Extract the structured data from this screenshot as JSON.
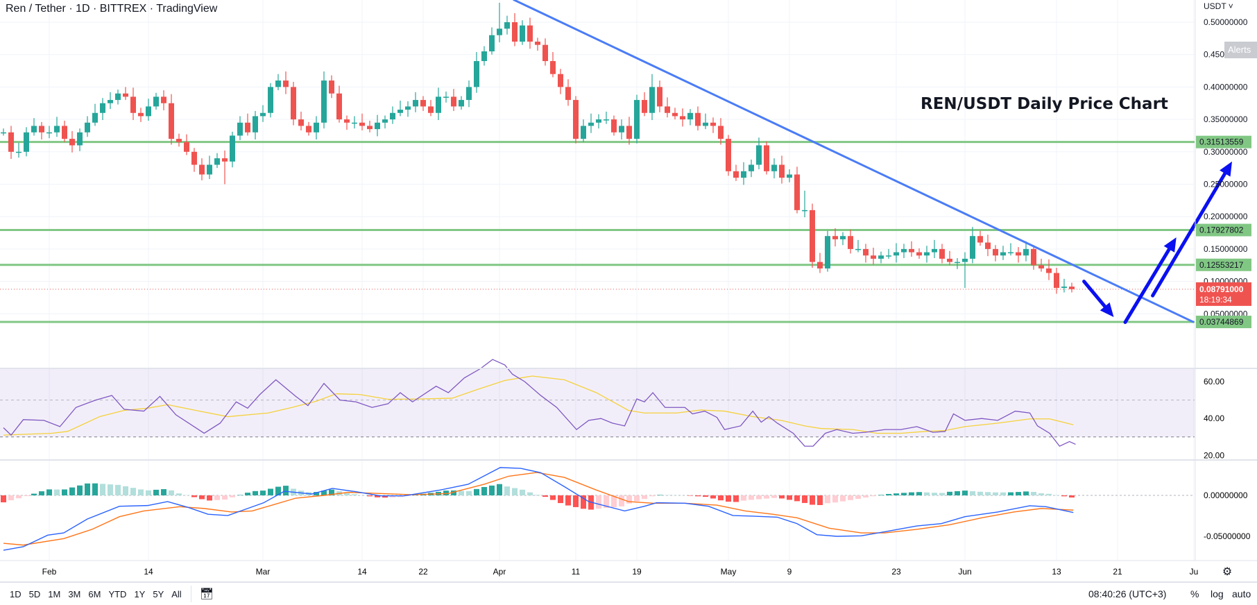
{
  "header": {
    "title": "Ren / Tether · 1D · BITTREX · TradingView"
  },
  "price_axis": {
    "currency": "USDT ˅",
    "alerts_label": "Alerts",
    "labels": [
      "0.50000000",
      "0.45000000",
      "0.40000000",
      "0.35000000",
      "0.30000000",
      "0.25000000",
      "0.20000000",
      "0.15000000",
      "0.10000000",
      "0.05000000"
    ],
    "current_price": "0.08791000",
    "countdown": "18:19:34"
  },
  "rsi_axis": {
    "labels": [
      "60.00",
      "40.00",
      "20.00"
    ]
  },
  "macd_axis": {
    "labels": [
      "0.00000000",
      "-0.05000000"
    ]
  },
  "time_axis": {
    "labels": [
      {
        "day": 6,
        "text": "Feb"
      },
      {
        "day": 19,
        "text": "14"
      },
      {
        "day": 34,
        "text": "Mar"
      },
      {
        "day": 47,
        "text": "14"
      },
      {
        "day": 55,
        "text": "22"
      },
      {
        "day": 65,
        "text": "Apr"
      },
      {
        "day": 75,
        "text": "11"
      },
      {
        "day": 83,
        "text": "19"
      },
      {
        "day": 95,
        "text": "May"
      },
      {
        "day": 103,
        "text": "9"
      },
      {
        "day": 117,
        "text": "23"
      },
      {
        "day": 126,
        "text": "Jun"
      },
      {
        "day": 138,
        "text": "13"
      },
      {
        "day": 146,
        "text": "21"
      },
      {
        "day": 156,
        "text": "Ju"
      }
    ]
  },
  "bottom_toolbar": {
    "ranges": [
      "1D",
      "5D",
      "1M",
      "3M",
      "6M",
      "YTD",
      "1Y",
      "5Y",
      "All"
    ],
    "clock": "08:40:26 (UTC+3)",
    "percent": "%",
    "log": "log",
    "auto": "auto"
  },
  "colors": {
    "up": "#26a69a",
    "down": "#ef5350",
    "level": "#81c784",
    "trend": "#4a7cf7",
    "arrow": "#0a10f0",
    "rsi": "#7e57c2",
    "rsi_ma": "#f5d13a",
    "macd": "#2962ff",
    "signal": "#ff7417"
  },
  "chart_data": {
    "type": "candlestick",
    "title": "REN/USDT Daily Price Chart",
    "symbol": "Ren / Tether",
    "start_date": "Jan 26",
    "closes": [
      0.33,
      0.3,
      0.3,
      0.33,
      0.34,
      0.33,
      0.33,
      0.34,
      0.32,
      0.31,
      0.33,
      0.345,
      0.36,
      0.375,
      0.38,
      0.39,
      0.385,
      0.36,
      0.355,
      0.37,
      0.385,
      0.375,
      0.32,
      0.315,
      0.3,
      0.28,
      0.265,
      0.28,
      0.29,
      0.285,
      0.325,
      0.345,
      0.33,
      0.355,
      0.36,
      0.4,
      0.41,
      0.4,
      0.35,
      0.34,
      0.33,
      0.345,
      0.41,
      0.39,
      0.35,
      0.345,
      0.345,
      0.34,
      0.335,
      0.345,
      0.35,
      0.36,
      0.365,
      0.37,
      0.38,
      0.37,
      0.36,
      0.385,
      0.385,
      0.37,
      0.38,
      0.4,
      0.44,
      0.455,
      0.48,
      0.49,
      0.5,
      0.47,
      0.495,
      0.47,
      0.465,
      0.44,
      0.42,
      0.4,
      0.38,
      0.32,
      0.34,
      0.345,
      0.35,
      0.35,
      0.33,
      0.34,
      0.32,
      0.38,
      0.36,
      0.4,
      0.37,
      0.36,
      0.355,
      0.35,
      0.36,
      0.34,
      0.345,
      0.34,
      0.32,
      0.27,
      0.26,
      0.27,
      0.28,
      0.31,
      0.27,
      0.28,
      0.26,
      0.265,
      0.21,
      0.21,
      0.13,
      0.12,
      0.17,
      0.165,
      0.17,
      0.15,
      0.15,
      0.14,
      0.135,
      0.14,
      0.14,
      0.145,
      0.15,
      0.145,
      0.14,
      0.145,
      0.15,
      0.135,
      0.13,
      0.13,
      0.135,
      0.17,
      0.16,
      0.15,
      0.14,
      0.145,
      0.145,
      0.14,
      0.15,
      0.125,
      0.12,
      0.113,
      0.09,
      0.092,
      0.088
    ],
    "long_wicks": [
      {
        "day": 29,
        "low": 0.25
      },
      {
        "day": 65,
        "high": 0.53
      },
      {
        "day": 85,
        "high": 0.42
      },
      {
        "day": 126,
        "low": 0.09
      },
      {
        "day": 105,
        "high": 0.24
      }
    ],
    "levels": [
      {
        "value": 0.31513559,
        "label": "0.31513559"
      },
      {
        "value": 0.17927802,
        "label": "0.17927802"
      },
      {
        "value": 0.12553217,
        "label": "0.12553217"
      },
      {
        "value": 0.03744869,
        "label": "0.03744869"
      }
    ],
    "current_price": 0.08791,
    "trendline": {
      "from": {
        "day": 66.8,
        "price": 0.535
      },
      "to": {
        "day": 156,
        "price": 0.037
      }
    },
    "arrows": [
      {
        "from": {
          "day": 141.6,
          "price": 0.1
        },
        "to": {
          "day": 145.5,
          "price": 0.045
        }
      },
      {
        "from": {
          "day": 147,
          "price": 0.037
        },
        "to": {
          "day": 153.7,
          "price": 0.168
        }
      },
      {
        "from": {
          "day": 150.6,
          "price": 0.078
        },
        "to": {
          "day": 161,
          "price": 0.285
        }
      }
    ],
    "rsi": {
      "levels": [
        70,
        50,
        30
      ],
      "ylim": [
        18,
        72
      ],
      "points": [
        [
          0,
          35
        ],
        [
          1,
          31
        ],
        [
          2.6,
          39.4
        ],
        [
          5.3,
          39
        ],
        [
          7.4,
          35.6
        ],
        [
          9.5,
          46
        ],
        [
          12.1,
          50
        ],
        [
          14.2,
          52.5
        ],
        [
          15.8,
          45
        ],
        [
          18.4,
          44
        ],
        [
          20.5,
          52
        ],
        [
          22.6,
          42
        ],
        [
          26.3,
          32
        ],
        [
          28.4,
          37.5
        ],
        [
          30.5,
          49
        ],
        [
          32,
          45.6
        ],
        [
          33.6,
          53
        ],
        [
          35.7,
          61
        ],
        [
          38.3,
          52
        ],
        [
          39.9,
          47
        ],
        [
          42,
          59
        ],
        [
          44.1,
          50
        ],
        [
          46.2,
          49
        ],
        [
          48.3,
          46
        ],
        [
          50.4,
          48
        ],
        [
          52,
          54
        ],
        [
          53.6,
          49
        ],
        [
          56.7,
          57.5
        ],
        [
          58.3,
          54
        ],
        [
          60.4,
          62
        ],
        [
          62.5,
          67
        ],
        [
          64.1,
          72
        ],
        [
          65.7,
          69
        ],
        [
          66.7,
          64
        ],
        [
          68.3,
          60
        ],
        [
          70.4,
          52.5
        ],
        [
          72.5,
          46
        ],
        [
          75.1,
          34
        ],
        [
          76.7,
          39
        ],
        [
          78.3,
          40
        ],
        [
          79.8,
          37.5
        ],
        [
          81.4,
          36
        ],
        [
          83,
          50.6
        ],
        [
          84,
          49
        ],
        [
          85.1,
          54
        ],
        [
          86.7,
          46
        ],
        [
          89.3,
          46
        ],
        [
          90.3,
          42.5
        ],
        [
          91.9,
          44
        ],
        [
          93.5,
          40.6
        ],
        [
          94.5,
          34
        ],
        [
          96.6,
          36
        ],
        [
          98.2,
          44
        ],
        [
          99.3,
          38
        ],
        [
          100.3,
          41
        ],
        [
          101.4,
          37.5
        ],
        [
          103.5,
          32
        ],
        [
          105,
          25
        ],
        [
          106.1,
          25
        ],
        [
          107.7,
          32
        ],
        [
          109.2,
          34
        ],
        [
          111.3,
          32
        ],
        [
          112.9,
          32.5
        ],
        [
          115.5,
          34
        ],
        [
          117.6,
          34
        ],
        [
          119.7,
          35.6
        ],
        [
          121.8,
          32.5
        ],
        [
          123.4,
          33
        ],
        [
          124.5,
          42.5
        ],
        [
          126,
          39
        ],
        [
          128.2,
          40
        ],
        [
          130.3,
          39
        ],
        [
          132.6,
          44
        ],
        [
          134.5,
          43
        ],
        [
          135.5,
          36
        ],
        [
          137.1,
          32
        ],
        [
          138.4,
          25
        ],
        [
          139.7,
          27.5
        ],
        [
          140.5,
          26
        ]
      ],
      "ma": [
        [
          0,
          31
        ],
        [
          6.3,
          32
        ],
        [
          8.4,
          33
        ],
        [
          12.6,
          41
        ],
        [
          15.8,
          44.4
        ],
        [
          18.9,
          45.6
        ],
        [
          21.5,
          47.5
        ],
        [
          25.2,
          44.4
        ],
        [
          29.4,
          41
        ],
        [
          34.7,
          43
        ],
        [
          37.8,
          46
        ],
        [
          41,
          49.4
        ],
        [
          43.6,
          53.4
        ],
        [
          46.7,
          53
        ],
        [
          50.4,
          50.4
        ],
        [
          54.6,
          50.6
        ],
        [
          58.8,
          51
        ],
        [
          62,
          55.6
        ],
        [
          65.7,
          60.6
        ],
        [
          69.3,
          63
        ],
        [
          73.5,
          61
        ],
        [
          77.7,
          54
        ],
        [
          81.9,
          44.4
        ],
        [
          84,
          43
        ],
        [
          88.2,
          43
        ],
        [
          91.4,
          44.6
        ],
        [
          94.5,
          44
        ],
        [
          98.2,
          41
        ],
        [
          101.9,
          39
        ],
        [
          105,
          36
        ],
        [
          107.1,
          34.6
        ],
        [
          111.3,
          34
        ],
        [
          114.5,
          32
        ],
        [
          117.6,
          32
        ],
        [
          120.8,
          33
        ],
        [
          123.4,
          33.5
        ],
        [
          126,
          35.6
        ],
        [
          130.3,
          37.5
        ],
        [
          134.5,
          39.8
        ],
        [
          137.1,
          39.8
        ],
        [
          140.2,
          36.6
        ]
      ]
    },
    "macd": {
      "ylim": [
        -0.075,
        0.045
      ],
      "macd": [
        [
          0,
          -0.067
        ],
        [
          2.6,
          -0.0627
        ],
        [
          5.8,
          -0.0486
        ],
        [
          7.9,
          -0.0458
        ],
        [
          11,
          -0.0288
        ],
        [
          15.2,
          -0.0133
        ],
        [
          18.9,
          -0.0124
        ],
        [
          21.5,
          -0.0076
        ],
        [
          24.2,
          -0.0147
        ],
        [
          26.8,
          -0.023
        ],
        [
          29.4,
          -0.0246
        ],
        [
          32,
          -0.016
        ],
        [
          34.1,
          -0.009
        ],
        [
          36.8,
          0.005
        ],
        [
          40.4,
          0.0017
        ],
        [
          43.1,
          0.0085
        ],
        [
          46.2,
          0.0045
        ],
        [
          49.4,
          -0.0006
        ],
        [
          52.5,
          -0.0006
        ],
        [
          57.2,
          0.0065
        ],
        [
          60.9,
          0.0136
        ],
        [
          65.1,
          0.034
        ],
        [
          67.8,
          0.033
        ],
        [
          70.4,
          0.0277
        ],
        [
          73.5,
          0.0107
        ],
        [
          76.7,
          -0.0076
        ],
        [
          81.4,
          -0.019
        ],
        [
          84,
          -0.0133
        ],
        [
          85.6,
          -0.009
        ],
        [
          89.3,
          -0.0096
        ],
        [
          92.4,
          -0.0133
        ],
        [
          95.6,
          -0.0246
        ],
        [
          98.2,
          -0.0254
        ],
        [
          101.4,
          -0.0266
        ],
        [
          104,
          -0.0345
        ],
        [
          106.6,
          -0.048
        ],
        [
          109.2,
          -0.05
        ],
        [
          112.4,
          -0.0494
        ],
        [
          115.5,
          -0.0444
        ],
        [
          119.7,
          -0.0373
        ],
        [
          122.9,
          -0.0345
        ],
        [
          126,
          -0.026
        ],
        [
          130.3,
          -0.0203
        ],
        [
          134.5,
          -0.0127
        ],
        [
          136.6,
          -0.0138
        ],
        [
          140.2,
          -0.0209
        ]
      ],
      "signal": [
        [
          0,
          -0.0585
        ],
        [
          2.6,
          -0.0607
        ],
        [
          7.9,
          -0.0528
        ],
        [
          11.6,
          -0.0415
        ],
        [
          15.2,
          -0.026
        ],
        [
          18.4,
          -0.019
        ],
        [
          23.1,
          -0.0138
        ],
        [
          26.3,
          -0.016
        ],
        [
          29.9,
          -0.0203
        ],
        [
          32.6,
          -0.019
        ],
        [
          35.2,
          -0.0119
        ],
        [
          38.3,
          -0.0034
        ],
        [
          42,
          0
        ],
        [
          45.2,
          0.0037
        ],
        [
          49.4,
          0.0023
        ],
        [
          53.6,
          0.0008
        ],
        [
          58.3,
          0.0023
        ],
        [
          63,
          0.0136
        ],
        [
          66.2,
          0.0234
        ],
        [
          69.9,
          0.028
        ],
        [
          73.5,
          0.022
        ],
        [
          77.7,
          0.0065
        ],
        [
          81.9,
          -0.0076
        ],
        [
          85.1,
          -0.0096
        ],
        [
          89.3,
          -0.0096
        ],
        [
          93.5,
          -0.0119
        ],
        [
          97.2,
          -0.019
        ],
        [
          100.8,
          -0.023
        ],
        [
          104,
          -0.0274
        ],
        [
          108.2,
          -0.0401
        ],
        [
          112.4,
          -0.0458
        ],
        [
          115.5,
          -0.0458
        ],
        [
          119.7,
          -0.0415
        ],
        [
          124,
          -0.0359
        ],
        [
          128.2,
          -0.0274
        ],
        [
          132.4,
          -0.0203
        ],
        [
          136,
          -0.016
        ],
        [
          140.2,
          -0.018
        ]
      ]
    }
  }
}
